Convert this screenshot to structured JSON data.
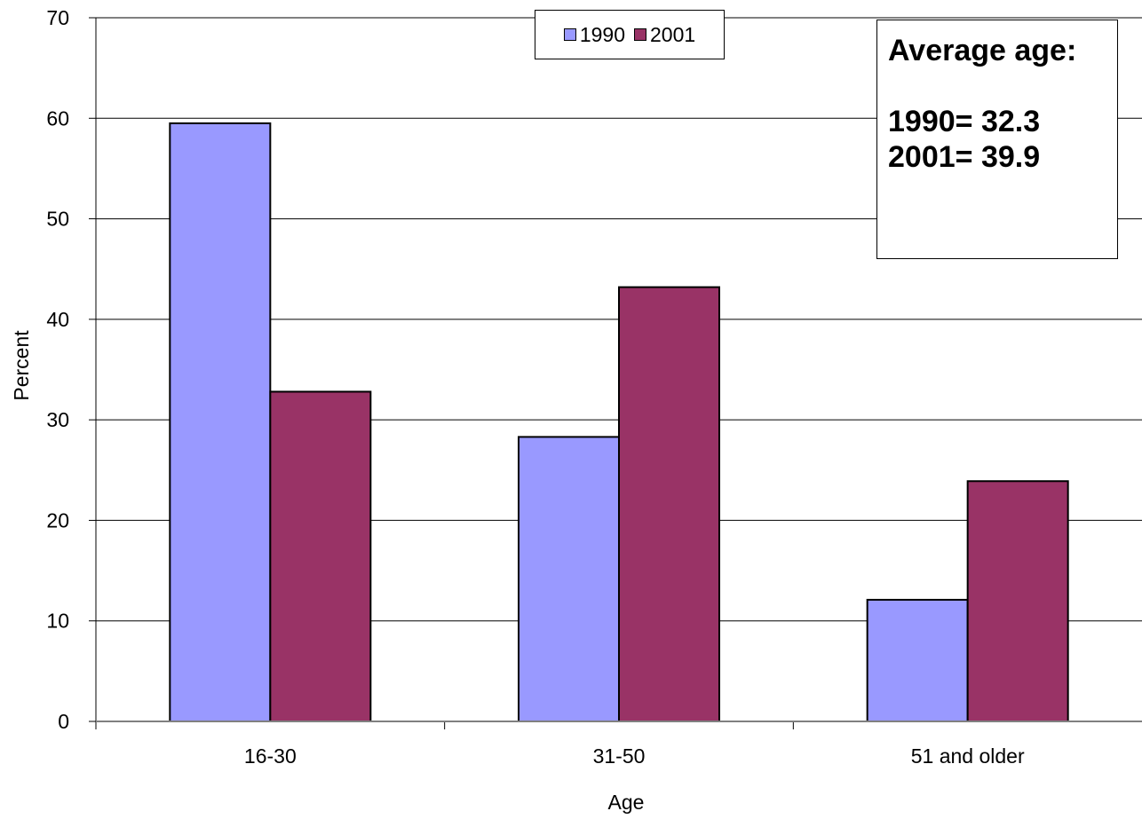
{
  "chart_data": {
    "type": "bar",
    "categories": [
      "16-30",
      "31-50",
      "51 and older"
    ],
    "series": [
      {
        "name": "1990",
        "values": [
          59.5,
          28.3,
          12.1
        ],
        "color": "#9999ff"
      },
      {
        "name": "2001",
        "values": [
          32.8,
          43.2,
          23.9
        ],
        "color": "#993366"
      }
    ],
    "title": "",
    "xlabel": "Age",
    "ylabel": "Percent",
    "ylim": [
      0,
      70
    ],
    "yticks": [
      0,
      10,
      20,
      30,
      40,
      50,
      60,
      70
    ],
    "grid": true,
    "legend_position": "top-center",
    "annotation": {
      "heading": "Average age:",
      "lines": [
        "1990= 32.3",
        "2001= 39.9"
      ]
    }
  }
}
